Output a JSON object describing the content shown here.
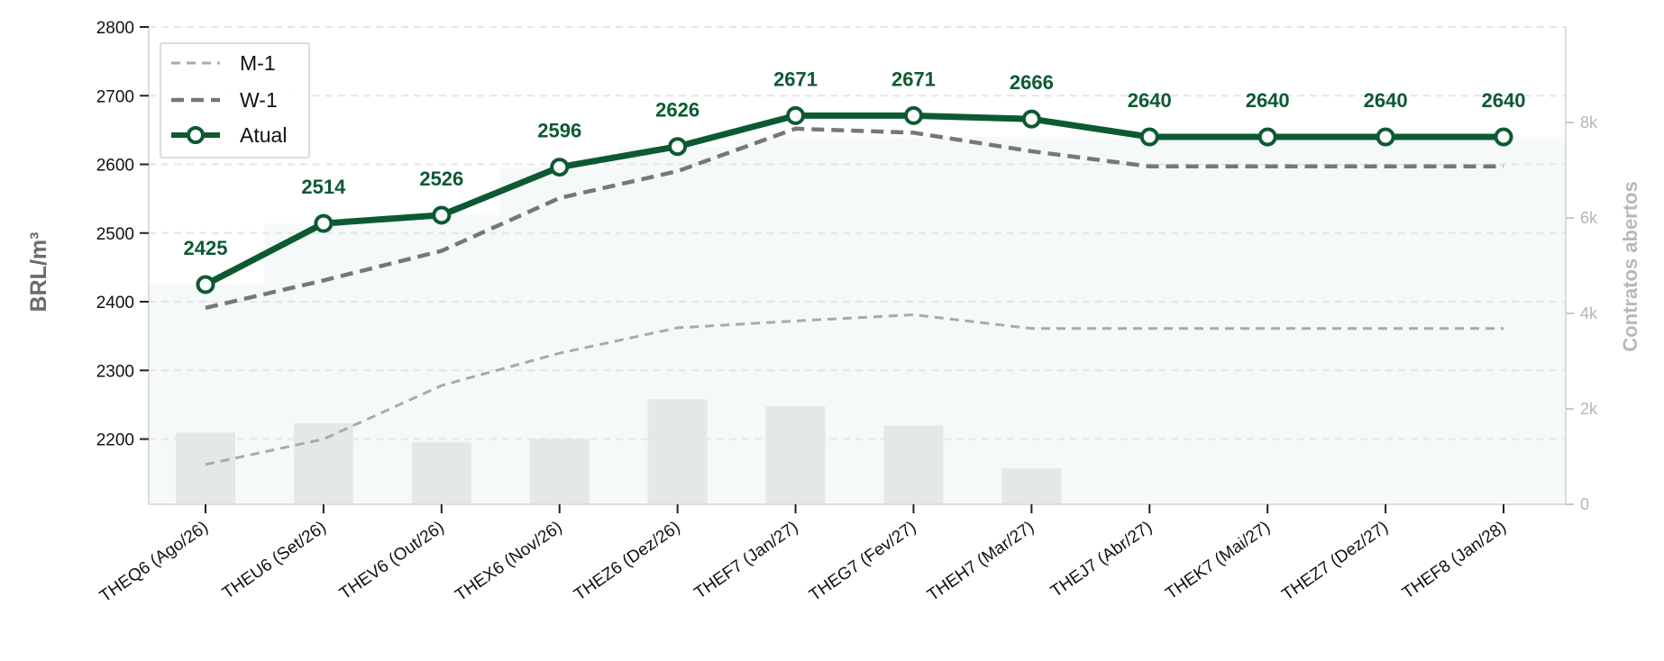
{
  "chart_data": {
    "type": "line",
    "categories": [
      "THEQ6 (Ago/26)",
      "THEU6 (Set/26)",
      "THEV6 (Out/26)",
      "THEX6 (Nov/26)",
      "THEZ6 (Dez/26)",
      "THEF7 (Jan/27)",
      "THEG7 (Fev/27)",
      "THEH7 (Mar/27)",
      "THEJ7 (Abr/27)",
      "THEK7 (Mai/27)",
      "THEZ7 (Dez/27)",
      "THEF8 (Jan/28)"
    ],
    "ylabel": "BRL/m³",
    "ylim": [
      2105,
      2800
    ],
    "yticks": [
      2200,
      2300,
      2400,
      2500,
      2600,
      2700,
      2800
    ],
    "y2label": "Contratos abertos",
    "y2lim": [
      0,
      10000
    ],
    "y2ticks": [
      0,
      2000,
      4000,
      6000,
      8000
    ],
    "y2ticklabels": [
      "0",
      "2k",
      "4k",
      "6k",
      "8k"
    ],
    "series": [
      {
        "name": "M-1",
        "style": "dashed-light",
        "color": "#aaaaaa",
        "values": [
          2163,
          2200,
          2278,
          2325,
          2362,
          2372,
          2381,
          2361,
          2361,
          2361,
          2361,
          2361
        ]
      },
      {
        "name": "W-1",
        "style": "dashed-dark",
        "color": "#777777",
        "values": [
          2391,
          2431,
          2474,
          2551,
          2590,
          2652,
          2646,
          2619,
          2597,
          2597,
          2597,
          2597
        ]
      },
      {
        "name": "Atual",
        "style": "solid-markers",
        "color": "#0d5a32",
        "values": [
          2425,
          2514,
          2526,
          2596,
          2626,
          2671,
          2671,
          2666,
          2640,
          2640,
          2640,
          2640
        ],
        "data_labels": [
          "2425",
          "2514",
          "2526",
          "2596",
          "2626",
          "2671",
          "2671",
          "2666",
          "2640",
          "2640",
          "2640",
          "2640"
        ]
      }
    ],
    "open_interest": {
      "name": "Contratos abertos",
      "color": "#e5e8e8",
      "values": [
        1500,
        1700,
        1300,
        1370,
        2200,
        2050,
        1650,
        750,
        0,
        0,
        0,
        0
      ]
    },
    "legend": {
      "placement": "top-left",
      "entries": [
        "M-1",
        "W-1",
        "Atual"
      ]
    },
    "grid": {
      "horizontal": true,
      "vertical": false
    },
    "background_area": {
      "color": "#f5f9fa",
      "values": [
        2425,
        2514,
        2526,
        2596,
        2626,
        2640,
        2640,
        2640,
        2640,
        2640,
        2640,
        2640
      ]
    }
  }
}
